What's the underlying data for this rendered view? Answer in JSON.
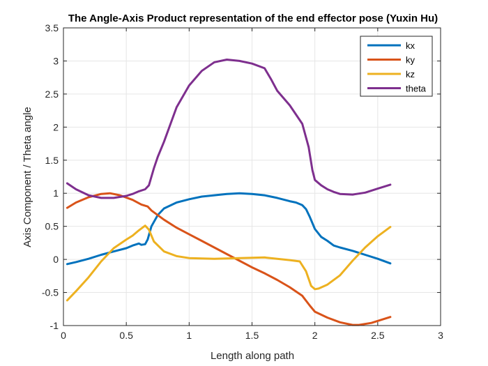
{
  "chart_data": {
    "type": "line",
    "title": "The Angle-Axis Product representation of the end effector pose (Yuxin Hu)",
    "xlabel": "Length along path",
    "ylabel": "Axis Component / Theta angle",
    "xlim": [
      0,
      3
    ],
    "ylim": [
      -1,
      3.5
    ],
    "xticks": [
      0,
      0.5,
      1,
      1.5,
      2,
      2.5,
      3
    ],
    "yticks": [
      -1,
      -0.5,
      0,
      0.5,
      1,
      1.5,
      2,
      2.5,
      3,
      3.5
    ],
    "xtick_labels": [
      "0",
      "0.5",
      "1",
      "1.5",
      "2",
      "2.5",
      "3"
    ],
    "ytick_labels": [
      "-1",
      "-0.5",
      "0",
      "0.5",
      "1",
      "1.5",
      "2",
      "2.5",
      "3",
      "3.5"
    ],
    "grid": true,
    "legend_position": "top-right",
    "series": [
      {
        "name": "kx",
        "color": "#0072BD",
        "x": [
          0.03,
          0.1,
          0.2,
          0.3,
          0.4,
          0.5,
          0.55,
          0.6,
          0.62,
          0.65,
          0.67,
          0.7,
          0.75,
          0.8,
          0.9,
          1.0,
          1.1,
          1.2,
          1.3,
          1.4,
          1.5,
          1.6,
          1.7,
          1.8,
          1.85,
          1.9,
          1.93,
          1.96,
          2.0,
          2.05,
          2.1,
          2.15,
          2.2,
          2.3,
          2.4,
          2.5,
          2.6
        ],
        "y": [
          -0.07,
          -0.04,
          0.01,
          0.07,
          0.12,
          0.17,
          0.21,
          0.24,
          0.22,
          0.23,
          0.3,
          0.5,
          0.67,
          0.77,
          0.86,
          0.91,
          0.95,
          0.97,
          0.99,
          1.0,
          0.99,
          0.97,
          0.93,
          0.88,
          0.86,
          0.82,
          0.76,
          0.64,
          0.46,
          0.34,
          0.28,
          0.21,
          0.18,
          0.13,
          0.07,
          0.01,
          -0.06
        ]
      },
      {
        "name": "ky",
        "color": "#D95319",
        "x": [
          0.03,
          0.1,
          0.2,
          0.3,
          0.37,
          0.45,
          0.55,
          0.62,
          0.67,
          0.7,
          0.8,
          0.9,
          1.0,
          1.1,
          1.2,
          1.3,
          1.4,
          1.5,
          1.6,
          1.7,
          1.8,
          1.9,
          1.96,
          2.0,
          2.1,
          2.2,
          2.3,
          2.35,
          2.45,
          2.6
        ],
        "y": [
          0.78,
          0.86,
          0.94,
          0.99,
          1.0,
          0.97,
          0.9,
          0.83,
          0.8,
          0.74,
          0.6,
          0.48,
          0.38,
          0.28,
          0.18,
          0.08,
          -0.02,
          -0.12,
          -0.21,
          -0.31,
          -0.42,
          -0.55,
          -0.7,
          -0.79,
          -0.88,
          -0.95,
          -0.99,
          -0.99,
          -0.96,
          -0.87
        ]
      },
      {
        "name": "kz",
        "color": "#EDB120",
        "x": [
          0.03,
          0.1,
          0.2,
          0.3,
          0.4,
          0.5,
          0.55,
          0.6,
          0.65,
          0.68,
          0.72,
          0.8,
          0.9,
          1.0,
          1.2,
          1.4,
          1.6,
          1.7,
          1.8,
          1.88,
          1.93,
          1.97,
          2.0,
          2.03,
          2.1,
          2.2,
          2.3,
          2.4,
          2.5,
          2.6
        ],
        "y": [
          -0.62,
          -0.48,
          -0.27,
          -0.03,
          0.17,
          0.3,
          0.36,
          0.44,
          0.51,
          0.45,
          0.27,
          0.12,
          0.05,
          0.02,
          0.01,
          0.02,
          0.03,
          0.01,
          -0.01,
          -0.03,
          -0.18,
          -0.4,
          -0.45,
          -0.44,
          -0.38,
          -0.24,
          -0.02,
          0.18,
          0.35,
          0.49
        ]
      },
      {
        "name": "theta",
        "color": "#7E2F8E",
        "x": [
          0.03,
          0.1,
          0.2,
          0.3,
          0.4,
          0.5,
          0.55,
          0.6,
          0.65,
          0.68,
          0.72,
          0.75,
          0.8,
          0.85,
          0.9,
          1.0,
          1.1,
          1.2,
          1.3,
          1.4,
          1.5,
          1.6,
          1.65,
          1.7,
          1.8,
          1.9,
          1.95,
          1.98,
          2.0,
          2.05,
          2.1,
          2.15,
          2.2,
          2.3,
          2.4,
          2.5,
          2.6
        ],
        "y": [
          1.15,
          1.06,
          0.97,
          0.93,
          0.93,
          0.96,
          0.99,
          1.03,
          1.06,
          1.12,
          1.38,
          1.55,
          1.78,
          2.04,
          2.3,
          2.63,
          2.85,
          2.98,
          3.02,
          3.0,
          2.96,
          2.89,
          2.73,
          2.55,
          2.33,
          2.05,
          1.7,
          1.35,
          1.2,
          1.12,
          1.06,
          1.02,
          0.99,
          0.98,
          1.01,
          1.07,
          1.13
        ]
      }
    ]
  }
}
